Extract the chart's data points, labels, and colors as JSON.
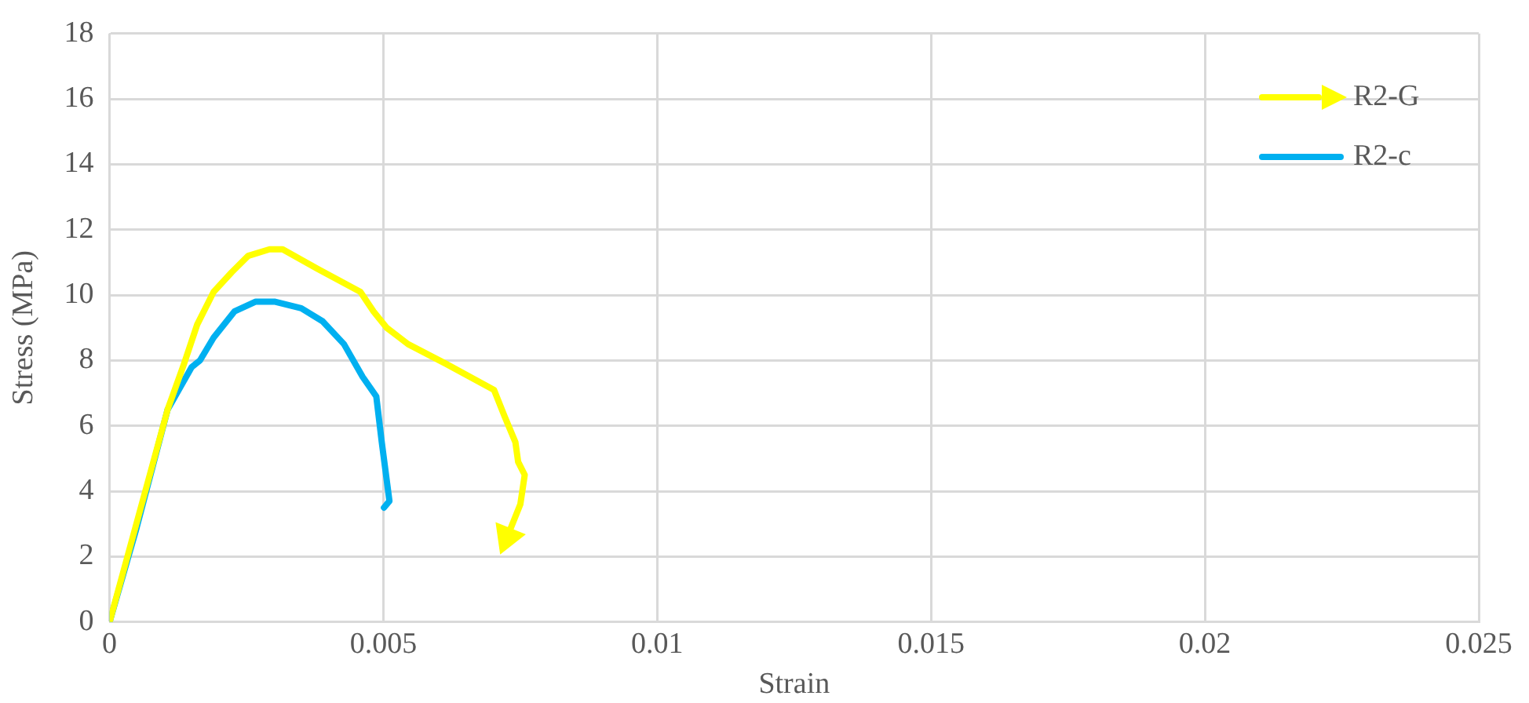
{
  "chart_data": {
    "type": "line",
    "xlabel": "Strain",
    "ylabel": "Stress (MPa)",
    "xlim": [
      0,
      0.025
    ],
    "xticks": [
      0,
      0.005,
      0.01,
      0.015,
      0.02,
      0.025
    ],
    "ylim": [
      0,
      18
    ],
    "yticks": [
      0,
      2,
      4,
      6,
      8,
      10,
      12,
      14,
      16,
      18
    ],
    "grid": true,
    "legend": "top right",
    "marker": "none",
    "line_style": "solid",
    "series": [
      {
        "name": "R2-G",
        "color": "#ffff00",
        "x": [
          0,
          0.00106,
          0.00136,
          0.0016,
          0.0019,
          0.00223,
          0.00253,
          0.00292,
          0.00316,
          0.0038,
          0.00458,
          0.00482,
          0.00506,
          0.00545,
          0.00614,
          0.00702,
          0.00721,
          0.00741,
          0.00746,
          0.00758,
          0.0075,
          0.00726
        ],
        "values": [
          0,
          6.5,
          7.9,
          9.1,
          10.1,
          10.7,
          11.2,
          11.4,
          11.4,
          10.8,
          10.1,
          9.5,
          9.0,
          8.5,
          7.9,
          7.1,
          6.3,
          5.5,
          4.9,
          4.5,
          3.6,
          2.6
        ]
      },
      {
        "name": "R2-c",
        "color": "#00b0f0",
        "x": [
          0,
          0.00048,
          0.00106,
          0.0015,
          0.00165,
          0.0019,
          0.00228,
          0.00267,
          0.00301,
          0.0035,
          0.00389,
          0.00428,
          0.00462,
          0.00487,
          0.00497,
          0.00511,
          0.00501
        ],
        "values": [
          0,
          2.8,
          6.5,
          7.8,
          8.0,
          8.7,
          9.5,
          9.8,
          9.8,
          9.6,
          9.2,
          8.5,
          7.5,
          6.9,
          5.5,
          3.7,
          3.5
        ]
      }
    ]
  }
}
